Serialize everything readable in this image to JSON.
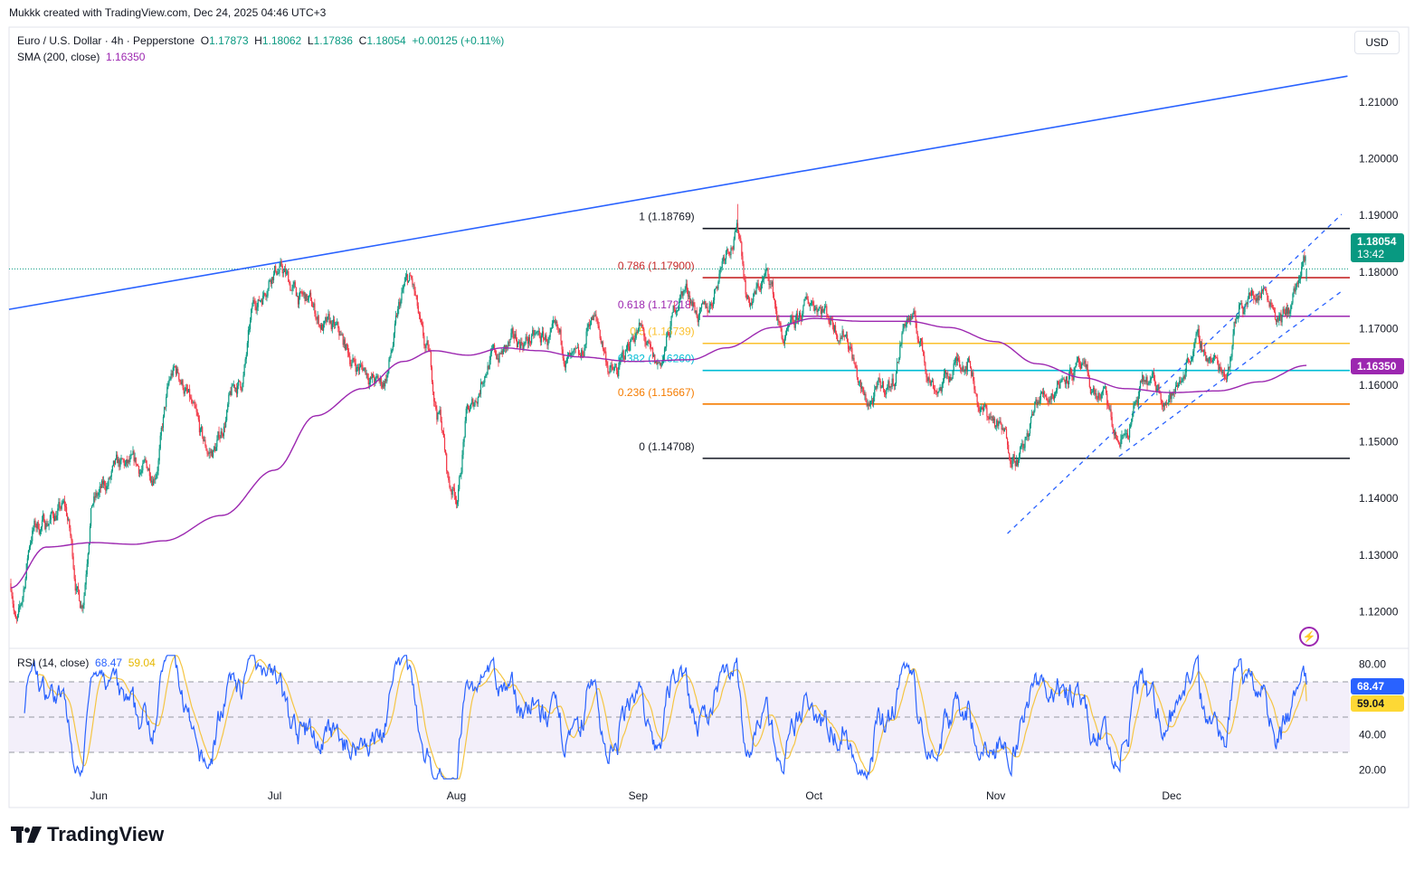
{
  "credit": "Mukkk created with TradingView.com, Dec 24, 2025 04:46 UTC+3",
  "currency_button": "USD",
  "legend": {
    "symbol": "Euro / U.S. Dollar · 4h · Pepperstone",
    "o_label": "O",
    "o": "1.17873",
    "h_label": "H",
    "h": "1.18062",
    "l_label": "L",
    "l": "1.17836",
    "c_label": "C",
    "c": "1.18054",
    "change": "+0.00125 (+0.11%)",
    "sma_label": "SMA (200, close)",
    "sma_value": "1.16350"
  },
  "rsi_legend": {
    "label": "RSI (14, close)",
    "rsi": "68.47",
    "ma": "59.04"
  },
  "price_tags": {
    "last": "1.18054",
    "countdown": "13:42",
    "sma": "1.16350",
    "rsi": "68.47",
    "rsi_ma": "59.04"
  },
  "brand": "TradingView",
  "colors": {
    "up": "#089981",
    "down": "#f23645",
    "sma": "#9c27b0",
    "trendline": "#2962ff",
    "rsi": "#2962ff",
    "rsi_ma": "#f5c542",
    "rsi_band": "#ede7f6"
  },
  "chart_data": {
    "type": "candlestick",
    "title": "Euro / U.S. Dollar · 4h · Pepperstone",
    "price_axis_ticks": [
      "1.21000",
      "1.20000",
      "1.19000",
      "1.18000",
      "1.17000",
      "1.16000",
      "1.15000",
      "1.14000",
      "1.13000",
      "1.12000"
    ],
    "price_axis_values": [
      1.21,
      1.2,
      1.19,
      1.18,
      1.17,
      1.16,
      1.15,
      1.14,
      1.13,
      1.12
    ],
    "time_axis_ticks": [
      {
        "label": "Jun",
        "date": "2025-06-01"
      },
      {
        "label": "Jul",
        "date": "2025-07-01"
      },
      {
        "label": "Aug",
        "date": "2025-08-01"
      },
      {
        "label": "Sep",
        "date": "2025-09-01"
      },
      {
        "label": "Oct",
        "date": "2025-10-01"
      },
      {
        "label": "Nov",
        "date": "2025-11-01"
      },
      {
        "label": "Dec",
        "date": "2025-12-01"
      }
    ],
    "date_range": [
      "2025-05-17",
      "2025-12-24"
    ],
    "close_keypoints": [
      [
        "2025-05-17",
        1.125
      ],
      [
        "2025-05-18",
        1.118
      ],
      [
        "2025-05-21",
        1.135
      ],
      [
        "2025-05-26",
        1.138
      ],
      [
        "2025-05-29",
        1.122
      ],
      [
        "2025-05-31",
        1.14
      ],
      [
        "2025-06-05",
        1.145
      ],
      [
        "2025-06-10",
        1.145
      ],
      [
        "2025-06-14",
        1.162
      ],
      [
        "2025-06-20",
        1.148
      ],
      [
        "2025-06-25",
        1.16
      ],
      [
        "2025-06-28",
        1.175
      ],
      [
        "2025-07-01",
        1.181
      ],
      [
        "2025-07-06",
        1.175
      ],
      [
        "2025-07-10",
        1.17
      ],
      [
        "2025-07-16",
        1.163
      ],
      [
        "2025-07-19",
        1.16
      ],
      [
        "2025-07-24",
        1.178
      ],
      [
        "2025-07-27",
        1.165
      ],
      [
        "2025-07-29",
        1.155
      ],
      [
        "2025-07-31",
        1.142
      ],
      [
        "2025-08-01",
        1.141
      ],
      [
        "2025-08-03",
        1.155
      ],
      [
        "2025-08-07",
        1.165
      ],
      [
        "2025-08-13",
        1.168
      ],
      [
        "2025-08-17",
        1.168
      ],
      [
        "2025-08-22",
        1.163
      ],
      [
        "2025-08-24",
        1.172
      ],
      [
        "2025-08-28",
        1.162
      ],
      [
        "2025-09-01",
        1.17
      ],
      [
        "2025-09-04",
        1.163
      ],
      [
        "2025-09-09",
        1.177
      ],
      [
        "2025-09-12",
        1.172
      ],
      [
        "2025-09-17",
        1.186
      ],
      [
        "2025-09-18",
        1.187
      ],
      [
        "2025-09-20",
        1.175
      ],
      [
        "2025-09-23",
        1.179
      ],
      [
        "2025-09-26",
        1.168
      ],
      [
        "2025-10-01",
        1.175
      ],
      [
        "2025-10-06",
        1.17
      ],
      [
        "2025-10-10",
        1.157
      ],
      [
        "2025-10-14",
        1.16
      ],
      [
        "2025-10-17",
        1.172
      ],
      [
        "2025-10-22",
        1.16
      ],
      [
        "2025-10-27",
        1.165
      ],
      [
        "2025-10-30",
        1.155
      ],
      [
        "2025-11-05",
        1.148
      ],
      [
        "2025-11-09",
        1.158
      ],
      [
        "2025-11-14",
        1.163
      ],
      [
        "2025-11-19",
        1.158
      ],
      [
        "2025-11-22",
        1.15
      ],
      [
        "2025-11-27",
        1.16
      ],
      [
        "2025-12-01",
        1.158
      ],
      [
        "2025-12-05",
        1.167
      ],
      [
        "2025-12-10",
        1.163
      ],
      [
        "2025-12-13",
        1.175
      ],
      [
        "2025-12-17",
        1.177
      ],
      [
        "2025-12-20",
        1.172
      ],
      [
        "2025-12-24",
        1.1805
      ]
    ],
    "spike_high": {
      "date": "2025-09-18",
      "price": 1.192
    },
    "last_bar": {
      "open": 1.17873,
      "high": 1.18062,
      "low": 1.17836,
      "close": 1.18054
    },
    "sma200_keypoints": [
      [
        "2025-05-17",
        1.1242
      ],
      [
        "2025-05-23",
        1.1314
      ],
      [
        "2025-05-31",
        1.1322
      ],
      [
        "2025-06-07",
        1.1319
      ],
      [
        "2025-06-12",
        1.1325
      ],
      [
        "2025-06-22",
        1.137
      ],
      [
        "2025-07-01",
        1.145
      ],
      [
        "2025-07-08",
        1.1546
      ],
      [
        "2025-07-16",
        1.1594
      ],
      [
        "2025-07-23",
        1.1642
      ],
      [
        "2025-07-28",
        1.1661
      ],
      [
        "2025-08-03",
        1.1653
      ],
      [
        "2025-08-09",
        1.1666
      ],
      [
        "2025-08-15",
        1.1661
      ],
      [
        "2025-08-22",
        1.165
      ],
      [
        "2025-08-31",
        1.1642
      ],
      [
        "2025-09-10",
        1.1645
      ],
      [
        "2025-09-16",
        1.1666
      ],
      [
        "2025-09-24",
        1.1702
      ],
      [
        "2025-10-01",
        1.1718
      ],
      [
        "2025-10-09",
        1.1713
      ],
      [
        "2025-10-17",
        1.1713
      ],
      [
        "2025-10-24",
        1.1702
      ],
      [
        "2025-11-01",
        1.1677
      ],
      [
        "2025-11-08",
        1.1638
      ],
      [
        "2025-11-16",
        1.1613
      ],
      [
        "2025-11-23",
        1.1594
      ],
      [
        "2025-12-01",
        1.1587
      ],
      [
        "2025-12-09",
        1.159
      ],
      [
        "2025-12-16",
        1.1606
      ],
      [
        "2025-12-24",
        1.1635
      ]
    ],
    "trendline": {
      "from": [
        "2025-05-17",
        1.1734
      ],
      "to": [
        "2025-12-31",
        1.2146
      ]
    },
    "channel": [
      {
        "from": [
          "2025-11-03",
          1.1338
        ],
        "to": [
          "2025-12-30",
          1.1902
        ]
      },
      {
        "from": [
          "2025-11-22",
          1.1474
        ],
        "to": [
          "2025-12-30",
          1.1766
        ]
      }
    ],
    "fibonacci": {
      "start_date": "2025-09-12",
      "end_date": "2025-12-31",
      "levels": [
        {
          "ratio": "1",
          "price": "1.18769",
          "label": "1 (1.18769)",
          "color": "#131722"
        },
        {
          "ratio": "0.786",
          "price": "1.17900",
          "label": "0.786 (1.17900)",
          "color": "#c62828"
        },
        {
          "ratio": "0.618",
          "price": "1.17218",
          "label": "0.618 (1.17218)",
          "color": "#9c27b0"
        },
        {
          "ratio": "0.5",
          "price": "1.16739",
          "label": "0.5 (1.16739)",
          "color": "#fbc02d"
        },
        {
          "ratio": "0.382",
          "price": "1.16260",
          "label": "0.382 (1.16260)",
          "color": "#00bcd4"
        },
        {
          "ratio": "0.236",
          "price": "1.15667",
          "label": "0.236 (1.15667)",
          "color": "#f57c00"
        },
        {
          "ratio": "0",
          "price": "1.14708",
          "label": "0 (1.14708)",
          "color": "#131722"
        }
      ]
    },
    "rsi": {
      "period": 14,
      "upper": 70,
      "middle": 50,
      "lower": 30,
      "ticks": [
        "80.00",
        "40.00",
        "20.00"
      ],
      "tick_values": [
        80,
        40,
        20
      ],
      "last": 68.47,
      "ma_last": 59.04
    }
  }
}
